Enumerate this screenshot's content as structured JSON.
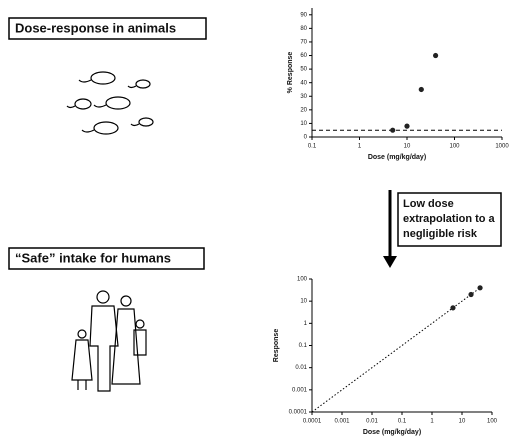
{
  "boxes": [
    "Dose-response in animals",
    "“Safe” intake for humans"
  ],
  "arrow_label": [
    "Low dose",
    "extrapolation to a",
    "negligible risk"
  ],
  "chart_data": [
    {
      "type": "scatter",
      "x_label": "Dose (mg/kg/day)",
      "y_label": "% Response",
      "x_scale": "log",
      "xlim": [
        0.1,
        1000
      ],
      "xticks": [
        0.1,
        1,
        10,
        100,
        1000
      ],
      "ylim": [
        0,
        95
      ],
      "yticks": [
        0,
        10,
        20,
        30,
        40,
        50,
        60,
        70,
        80,
        90
      ],
      "x": [
        5,
        10,
        20,
        40
      ],
      "values": [
        5,
        8,
        35,
        60
      ],
      "color": "#222",
      "reference_line": 5
    },
    {
      "type": "scatter",
      "x_label": "Dose (mg/kg/day)",
      "y_label": "Response",
      "x_scale": "log",
      "y_scale": "log",
      "xlim": [
        0.0001,
        100
      ],
      "xticks": [
        0.0001,
        0.001,
        0.01,
        0.1,
        1,
        10,
        100
      ],
      "ylim": [
        0.0001,
        100
      ],
      "yticks": [
        0.0001,
        0.001,
        0.01,
        0.1,
        1,
        10,
        100
      ],
      "x": [
        5,
        20,
        40
      ],
      "values": [
        5,
        20,
        40
      ],
      "color": "#222",
      "fit_line": {
        "x": [
          0.0001,
          40
        ],
        "y": [
          0.0001,
          40
        ]
      }
    }
  ]
}
